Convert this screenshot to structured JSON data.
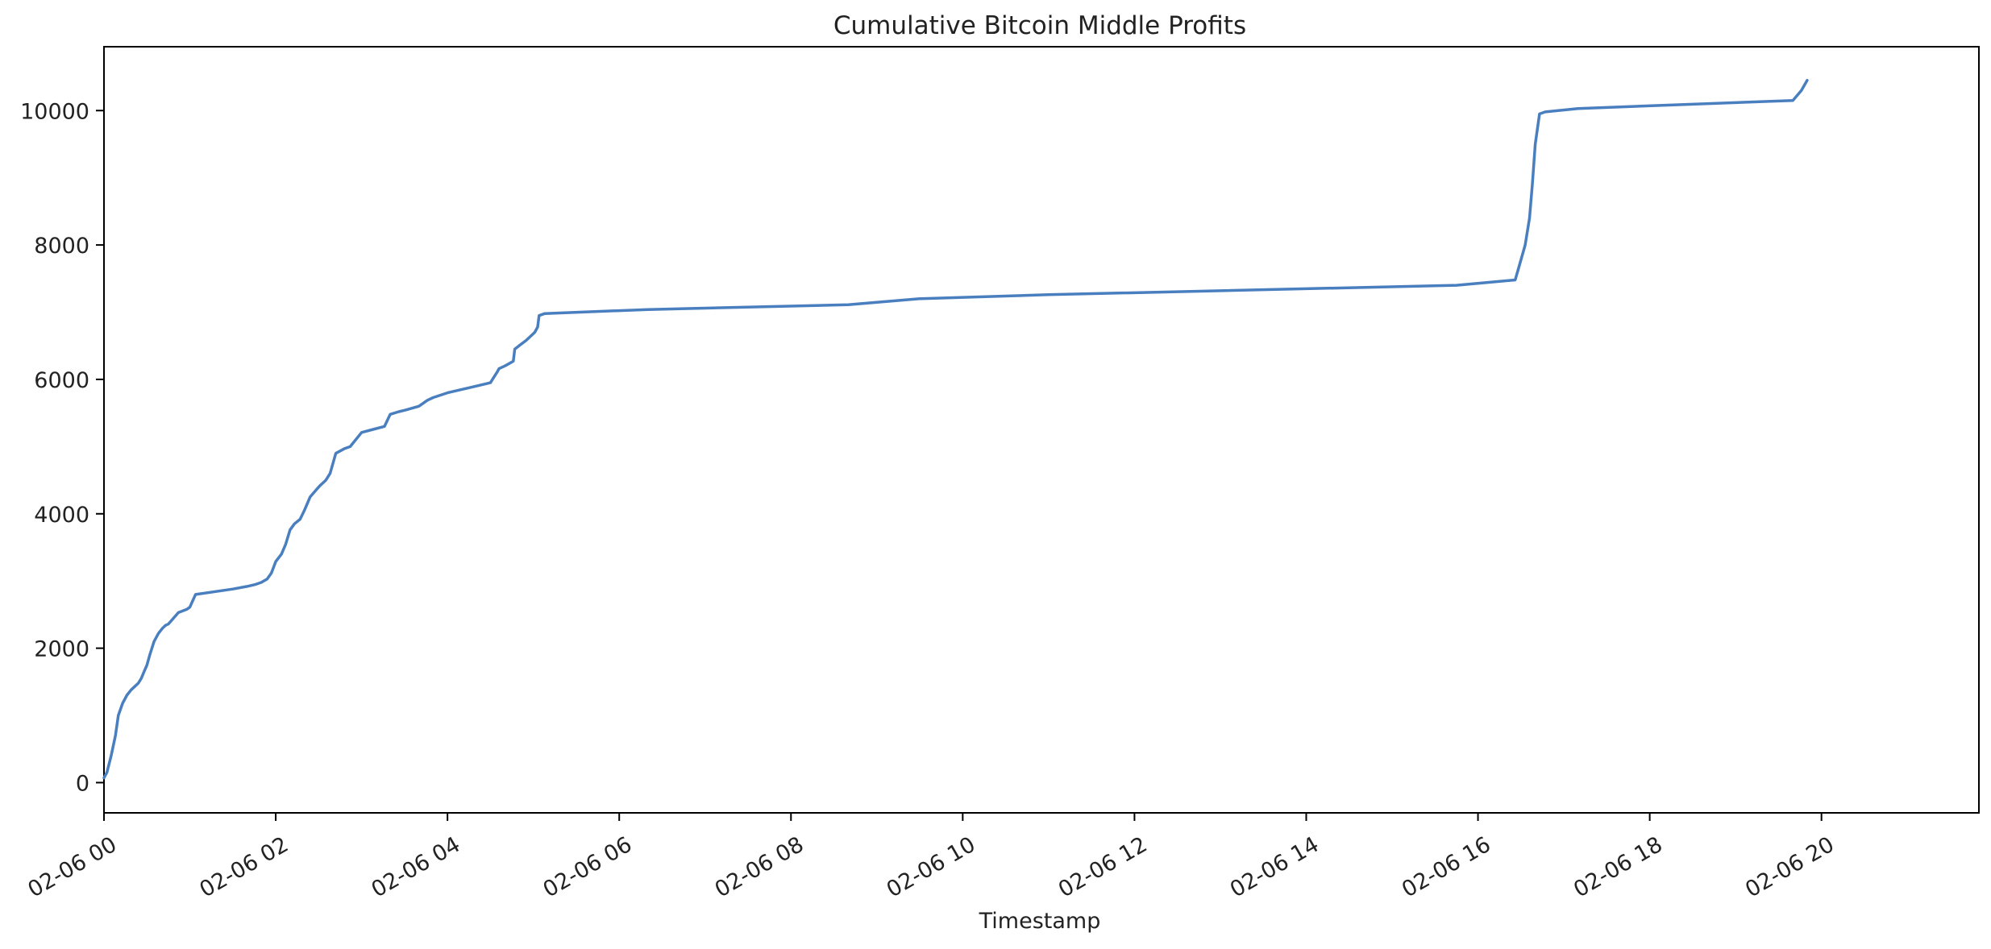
{
  "chart_data": {
    "type": "line",
    "title": "Cumulative Bitcoin Middle Profits",
    "xlabel": "Timestamp",
    "ylabel": "",
    "x_tick_labels": [
      "02-06 00",
      "02-06 02",
      "02-06 04",
      "02-06 06",
      "02-06 08",
      "02-06 10",
      "02-06 12",
      "02-06 14",
      "02-06 16",
      "02-06 18",
      "02-06 20"
    ],
    "x_ticks": [
      "02-06 00:00",
      "02-06 02:00",
      "02-06 04:00",
      "02-06 06:00",
      "02-06 08:00",
      "02-06 10:00",
      "02-06 12:00",
      "02-06 14:00",
      "02-06 16:00",
      "02-06 18:00",
      "02-06 20:00"
    ],
    "y_tick_labels": [
      "0",
      "2000",
      "4000",
      "6000",
      "8000",
      "10000"
    ],
    "y_ticks": [
      0,
      2000,
      4000,
      6000,
      8000,
      10000
    ],
    "xlim": [
      "02-06 00:00",
      "02-06 21:50"
    ],
    "ylim": [
      -450,
      10950
    ],
    "grid": false,
    "legend": "none",
    "line_color": "#4a7fbf",
    "series": [
      {
        "x": [
          "02-06 00:00",
          "02-06 00:02",
          "02-06 00:05",
          "02-06 00:08",
          "02-06 00:10",
          "02-06 00:13",
          "02-06 00:16",
          "02-06 00:19",
          "02-06 00:22",
          "02-06 00:24",
          "02-06 00:26",
          "02-06 00:28",
          "02-06 00:30",
          "02-06 00:32",
          "02-06 00:35",
          "02-06 00:38",
          "02-06 00:41",
          "02-06 00:43",
          "02-06 00:45",
          "02-06 00:52",
          "02-06 00:58",
          "02-06 01:00",
          "02-06 01:04",
          "02-06 01:30",
          "02-06 01:40",
          "02-06 01:46",
          "02-06 01:50",
          "02-06 01:54",
          "02-06 01:57",
          "02-06 02:00",
          "02-06 02:04",
          "02-06 02:07",
          "02-06 02:10",
          "02-06 02:13",
          "02-06 02:17",
          "02-06 02:20",
          "02-06 02:24",
          "02-06 02:28",
          "02-06 02:31",
          "02-06 02:35",
          "02-06 02:38",
          "02-06 02:42",
          "02-06 02:48",
          "02-06 02:52",
          "02-06 03:00",
          "02-06 03:07",
          "02-06 03:16",
          "02-06 03:20",
          "02-06 03:26",
          "02-06 03:30",
          "02-06 03:40",
          "02-06 03:46",
          "02-06 03:50",
          "02-06 04:00",
          "02-06 04:10",
          "02-06 04:20",
          "02-06 04:30",
          "02-06 04:35",
          "02-06 04:36",
          "02-06 04:40",
          "02-06 04:46",
          "02-06 04:47",
          "02-06 04:50",
          "02-06 04:55",
          "02-06 04:58",
          "02-06 05:01",
          "02-06 05:03",
          "02-06 05:04",
          "02-06 05:08",
          "02-06 06:20",
          "02-06 08:40",
          "02-06 09:30",
          "02-06 11:00",
          "02-06 15:45",
          "02-06 16:26",
          "02-06 16:29",
          "02-06 16:33",
          "02-06 16:36",
          "02-06 16:38",
          "02-06 16:40",
          "02-06 16:43",
          "02-06 16:47",
          "02-06 17:10",
          "02-06 19:40",
          "02-06 19:42",
          "02-06 19:46",
          "02-06 19:50"
        ],
        "y": [
          70,
          150,
          400,
          700,
          1000,
          1180,
          1300,
          1380,
          1440,
          1480,
          1550,
          1650,
          1750,
          1900,
          2100,
          2220,
          2300,
          2340,
          2360,
          2530,
          2580,
          2610,
          2800,
          2880,
          2920,
          2950,
          2980,
          3030,
          3120,
          3290,
          3400,
          3550,
          3760,
          3850,
          3920,
          4050,
          4250,
          4350,
          4420,
          4500,
          4600,
          4900,
          4970,
          5000,
          5210,
          5250,
          5300,
          5480,
          5520,
          5540,
          5600,
          5690,
          5730,
          5800,
          5850,
          5900,
          5950,
          6120,
          6160,
          6200,
          6270,
          6450,
          6500,
          6580,
          6640,
          6700,
          6780,
          6950,
          6980,
          7040,
          7110,
          7200,
          7260,
          7400,
          7480,
          7700,
          8000,
          8400,
          8900,
          9500,
          9950,
          9980,
          10030,
          10150,
          10200,
          10300,
          10450
        ]
      }
    ]
  }
}
